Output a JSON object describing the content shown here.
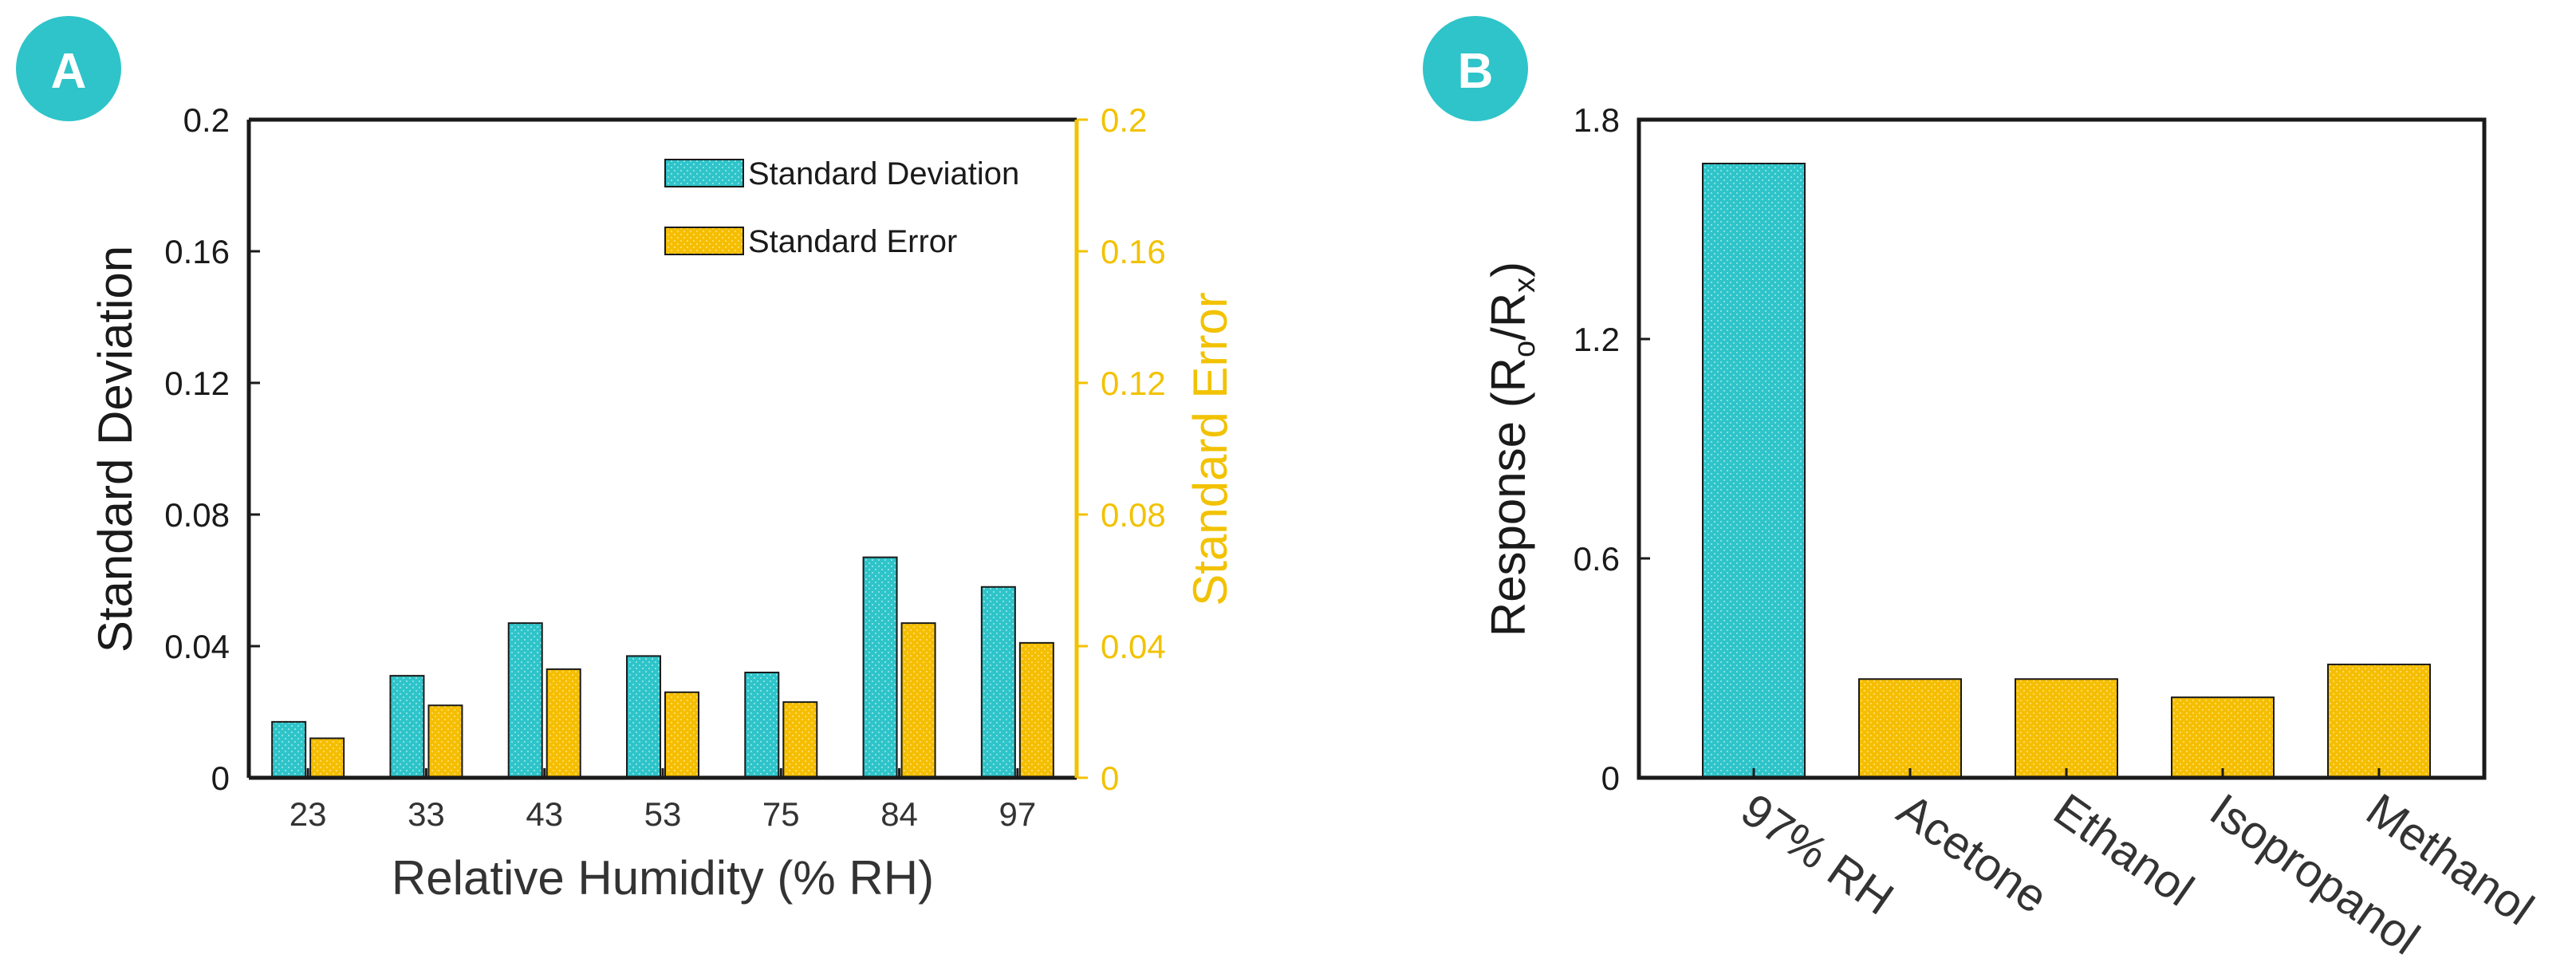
{
  "colors": {
    "teal": "#2ec4c9",
    "gold": "#f5be00",
    "gold_text": "#f2c200",
    "axis": "#1a1a1a",
    "badge": "#2ec4c9"
  },
  "chart_data": [
    {
      "panel": "A",
      "type": "bar",
      "title": "",
      "xlabel": "Relative Humidity (% RH)",
      "ylabel": "Standard Deviation",
      "ylabel_right": "Standard Error",
      "categories": [
        "23",
        "33",
        "43",
        "53",
        "75",
        "84",
        "97"
      ],
      "ylim": [
        0,
        0.2
      ],
      "yticks": [
        "0",
        "0.04",
        "0.08",
        "0.12",
        "0.16",
        "0.2"
      ],
      "ylim_right": [
        0,
        0.2
      ],
      "yticks_right": [
        "0",
        "0.04",
        "0.08",
        "0.12",
        "0.16",
        "0.2"
      ],
      "legend_position": "top-right",
      "series": [
        {
          "name": "Standard Deviation",
          "axis": "left",
          "color": "#2ec4c9",
          "values": [
            0.017,
            0.031,
            0.047,
            0.037,
            0.032,
            0.067,
            0.058
          ]
        },
        {
          "name": "Standard Error",
          "axis": "right",
          "color": "#f5be00",
          "values": [
            0.012,
            0.022,
            0.033,
            0.026,
            0.023,
            0.047,
            0.041
          ]
        }
      ]
    },
    {
      "panel": "B",
      "type": "bar",
      "title": "",
      "xlabel": "",
      "ylabel_main": "Response (R",
      "ylabel_sub1": "o",
      "ylabel_mid": "/R",
      "ylabel_sub2": "x",
      "ylabel_end": ")",
      "categories": [
        "97% RH",
        "Acetone",
        "Ethanol",
        "Isopropanol",
        "Methanol"
      ],
      "values": [
        1.68,
        0.27,
        0.27,
        0.22,
        0.31
      ],
      "bar_colors": [
        "#2ec4c9",
        "#f5be00",
        "#f5be00",
        "#f5be00",
        "#f5be00"
      ],
      "ylim": [
        0,
        1.8
      ],
      "yticks": [
        "0",
        "0.6",
        "1.2",
        "1.8"
      ]
    }
  ]
}
